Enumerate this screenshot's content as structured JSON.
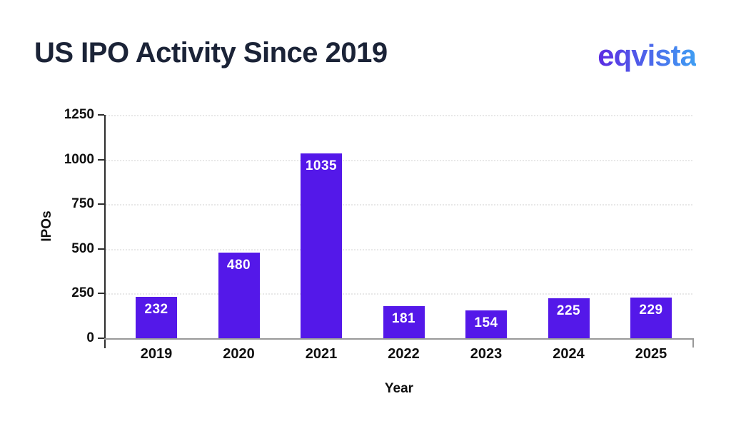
{
  "header": {
    "title": "US IPO Activity Since 2019",
    "logo_text": "eqvista"
  },
  "colors": {
    "bar": "#5418e9",
    "title": "#1b2337",
    "tick_label": "#0f0f0f",
    "gridline": "#e8e8e8",
    "y_axis_line": "#2e2e2e",
    "x_axis_line": "#999999",
    "bar_value_label": "#ffffff",
    "logo_gradient_start": "#5c2be2",
    "logo_gradient_end": "#3f9ef3"
  },
  "chart_data": {
    "type": "bar",
    "title": "US IPO Activity Since 2019",
    "categories": [
      "2019",
      "2020",
      "2021",
      "2022",
      "2023",
      "2024",
      "2025"
    ],
    "values": [
      232,
      480,
      1035,
      181,
      154,
      225,
      229
    ],
    "xlabel": "Year",
    "ylabel": "IPOs",
    "ylim": [
      0,
      1250
    ],
    "yticks": [
      0,
      250,
      500,
      750,
      1000,
      1250
    ],
    "grid": "horizontal-dotted",
    "legend": "none",
    "bar_value_labels": "inside-top-white"
  }
}
